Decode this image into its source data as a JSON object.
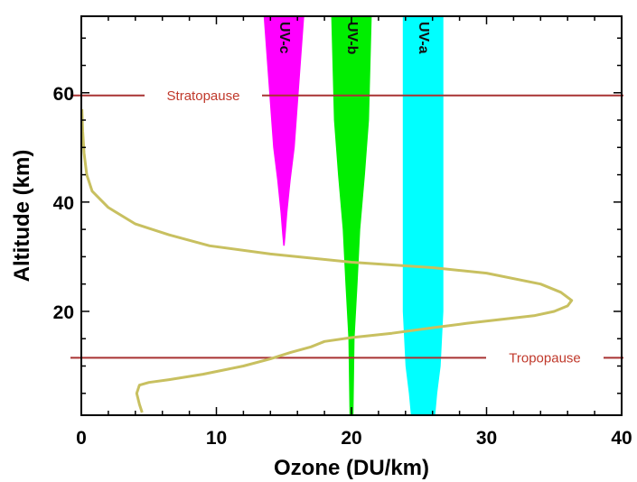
{
  "chart_data": {
    "type": "line",
    "xlabel": "Ozone (DU/km)",
    "ylabel": "Altitude (km)",
    "xlim": [
      0,
      40
    ],
    "ylim": [
      1,
      74
    ],
    "xticks": [
      0,
      10,
      20,
      30,
      40
    ],
    "yticks": [
      20,
      40,
      60
    ],
    "grid": false,
    "series": [
      {
        "color": "#c8c060",
        "x": [
          4.5,
          4.3,
          4.1,
          4.3,
          5.0,
          6.5,
          9.0,
          12.0,
          14.0,
          15.5,
          17.0,
          18.0,
          20.0,
          23.0,
          26.0,
          28.5,
          31.0,
          33.5,
          35.0,
          36.0,
          36.3,
          35.5,
          34.0,
          30.0,
          26.0,
          20.0,
          14.0,
          9.5,
          6.5,
          4.0,
          2.0,
          0.8,
          0.4,
          0.2,
          0.1,
          0.05
        ],
        "y": [
          1.5,
          3,
          5,
          6.5,
          7,
          7.5,
          8.5,
          10,
          11.3,
          12.5,
          13.5,
          14.5,
          15.2,
          16,
          17,
          17.8,
          18.5,
          19.2,
          20,
          21,
          22,
          23.5,
          25,
          27,
          28,
          29,
          30.5,
          32,
          34,
          36,
          39,
          42,
          45,
          49,
          53,
          57
        ]
      }
    ],
    "reference_lines": [
      {
        "label": "Stratopause",
        "y": 59.5
      },
      {
        "label": "Tropopause",
        "y": 11.5
      }
    ],
    "bands": [
      {
        "label": "UV-c",
        "color": "#ff00ff",
        "center": 15.0,
        "width_profile": [
          [
            74,
            3.0
          ],
          [
            50,
            1.6
          ],
          [
            44,
            1.0
          ],
          [
            38,
            0.5
          ],
          [
            34,
            0.25
          ],
          [
            32,
            0.1
          ]
        ]
      },
      {
        "label": "UV-b",
        "color": "#00ee00",
        "center": 20.0,
        "width_profile": [
          [
            74,
            3.0
          ],
          [
            55,
            2.6
          ],
          [
            45,
            2.0
          ],
          [
            35,
            1.3
          ],
          [
            25,
            0.9
          ],
          [
            15,
            0.45
          ],
          [
            1,
            0.3
          ]
        ]
      },
      {
        "label": "UV-a",
        "color": "#00ffff",
        "center": 25.3,
        "width_profile": [
          [
            74,
            3.0
          ],
          [
            20,
            3.0
          ],
          [
            10,
            2.6
          ],
          [
            5,
            2.1
          ],
          [
            1,
            1.8
          ]
        ]
      }
    ]
  }
}
